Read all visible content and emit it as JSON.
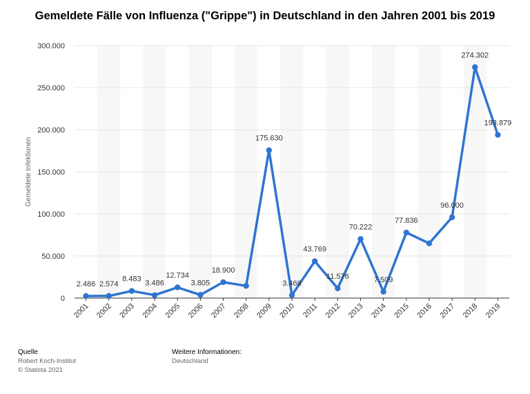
{
  "title": "Gemeldete Fälle von Influenza (\"Grippe\") in Deutschland in den Jahren 2001 bis 2019",
  "footer": {
    "source_heading": "Quelle",
    "source_line1": "Robert Koch-Institut",
    "source_line2": "© Statista 2021",
    "info_heading": "Weitere Informationen:",
    "info_line1": "Deutschland"
  },
  "colors": {
    "line": "#2f74d0",
    "grid": "#e6e6e6",
    "band": "#f7f7f7"
  },
  "chart_data": {
    "type": "line",
    "title": "Gemeldete Fälle von Influenza (\"Grippe\") in Deutschland in den Jahren 2001 bis 2019",
    "xlabel": "",
    "ylabel": "Gemeldete Infektionen",
    "ylim": [
      0,
      300000
    ],
    "yticks": [
      0,
      50000,
      100000,
      150000,
      200000,
      250000,
      300000
    ],
    "ytick_labels": [
      "0",
      "50.000",
      "100.000",
      "150.000",
      "200.000",
      "250.000",
      "300.000"
    ],
    "grid": true,
    "categories": [
      "2001",
      "2002",
      "2003",
      "2004",
      "2005",
      "2006",
      "2007",
      "2008",
      "2009",
      "2010",
      "2011",
      "2012",
      "2013",
      "2014",
      "2015",
      "2016",
      "2017",
      "2018",
      "2019"
    ],
    "series": [
      {
        "values": [
          2486,
          2574,
          8483,
          3486,
          12734,
          3805,
          18900,
          14500,
          175630,
          3468,
          43769,
          11576,
          70222,
          7509,
          77836,
          65000,
          96000,
          274302,
          193879
        ],
        "labels": [
          "2.486",
          "2.574",
          "8.483",
          "3.486",
          "12.734",
          "3.805",
          "18.900",
          "",
          "175.630",
          "3.468",
          "43.769",
          "11.576",
          "70.222",
          "7.509",
          "77.836",
          "",
          "96.000",
          "274.302",
          "193.879"
        ]
      }
    ]
  }
}
